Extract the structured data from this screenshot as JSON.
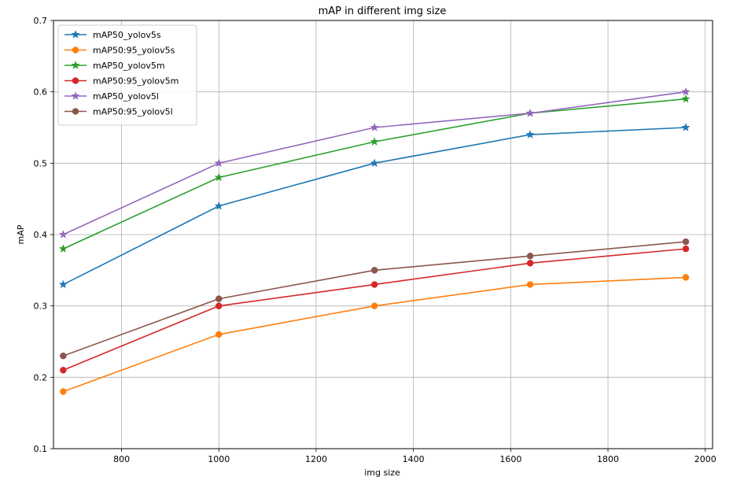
{
  "chart_data": {
    "type": "line",
    "title": "mAP in different img size",
    "xlabel": "img size",
    "ylabel": "mAP",
    "xlim": [
      660,
      2015
    ],
    "ylim": [
      0.1,
      0.7
    ],
    "xticks": [
      800,
      1000,
      1200,
      1400,
      1600,
      1800,
      2000
    ],
    "yticks": [
      0.1,
      0.2,
      0.3,
      0.4,
      0.5,
      0.6,
      0.7
    ],
    "grid": true,
    "legend_position": "top-left",
    "x": [
      680,
      1000,
      1320,
      1640,
      1960
    ],
    "series": [
      {
        "name": "mAP50_yolov5s",
        "color": "#1f77b4",
        "marker": "star",
        "values": [
          0.33,
          0.44,
          0.5,
          0.54,
          0.55
        ]
      },
      {
        "name": "mAP50:95_yolov5s",
        "color": "#ff7f0e",
        "marker": "circle",
        "values": [
          0.18,
          0.26,
          0.3,
          0.33,
          0.34
        ]
      },
      {
        "name": "mAP50_yolov5m",
        "color": "#2ca02c",
        "marker": "star",
        "values": [
          0.38,
          0.48,
          0.53,
          0.57,
          0.59
        ]
      },
      {
        "name": "mAP50:95_yolov5m",
        "color": "#d62728",
        "marker": "circle",
        "values": [
          0.21,
          0.3,
          0.33,
          0.36,
          0.38
        ]
      },
      {
        "name": "mAP50_yolov5l",
        "color": "#9467bd",
        "marker": "star",
        "values": [
          0.4,
          0.5,
          0.55,
          0.57,
          0.6
        ]
      },
      {
        "name": "mAP50:95_yolov5l",
        "color": "#8c564b",
        "marker": "circle",
        "values": [
          0.23,
          0.31,
          0.35,
          0.37,
          0.39
        ]
      }
    ]
  }
}
